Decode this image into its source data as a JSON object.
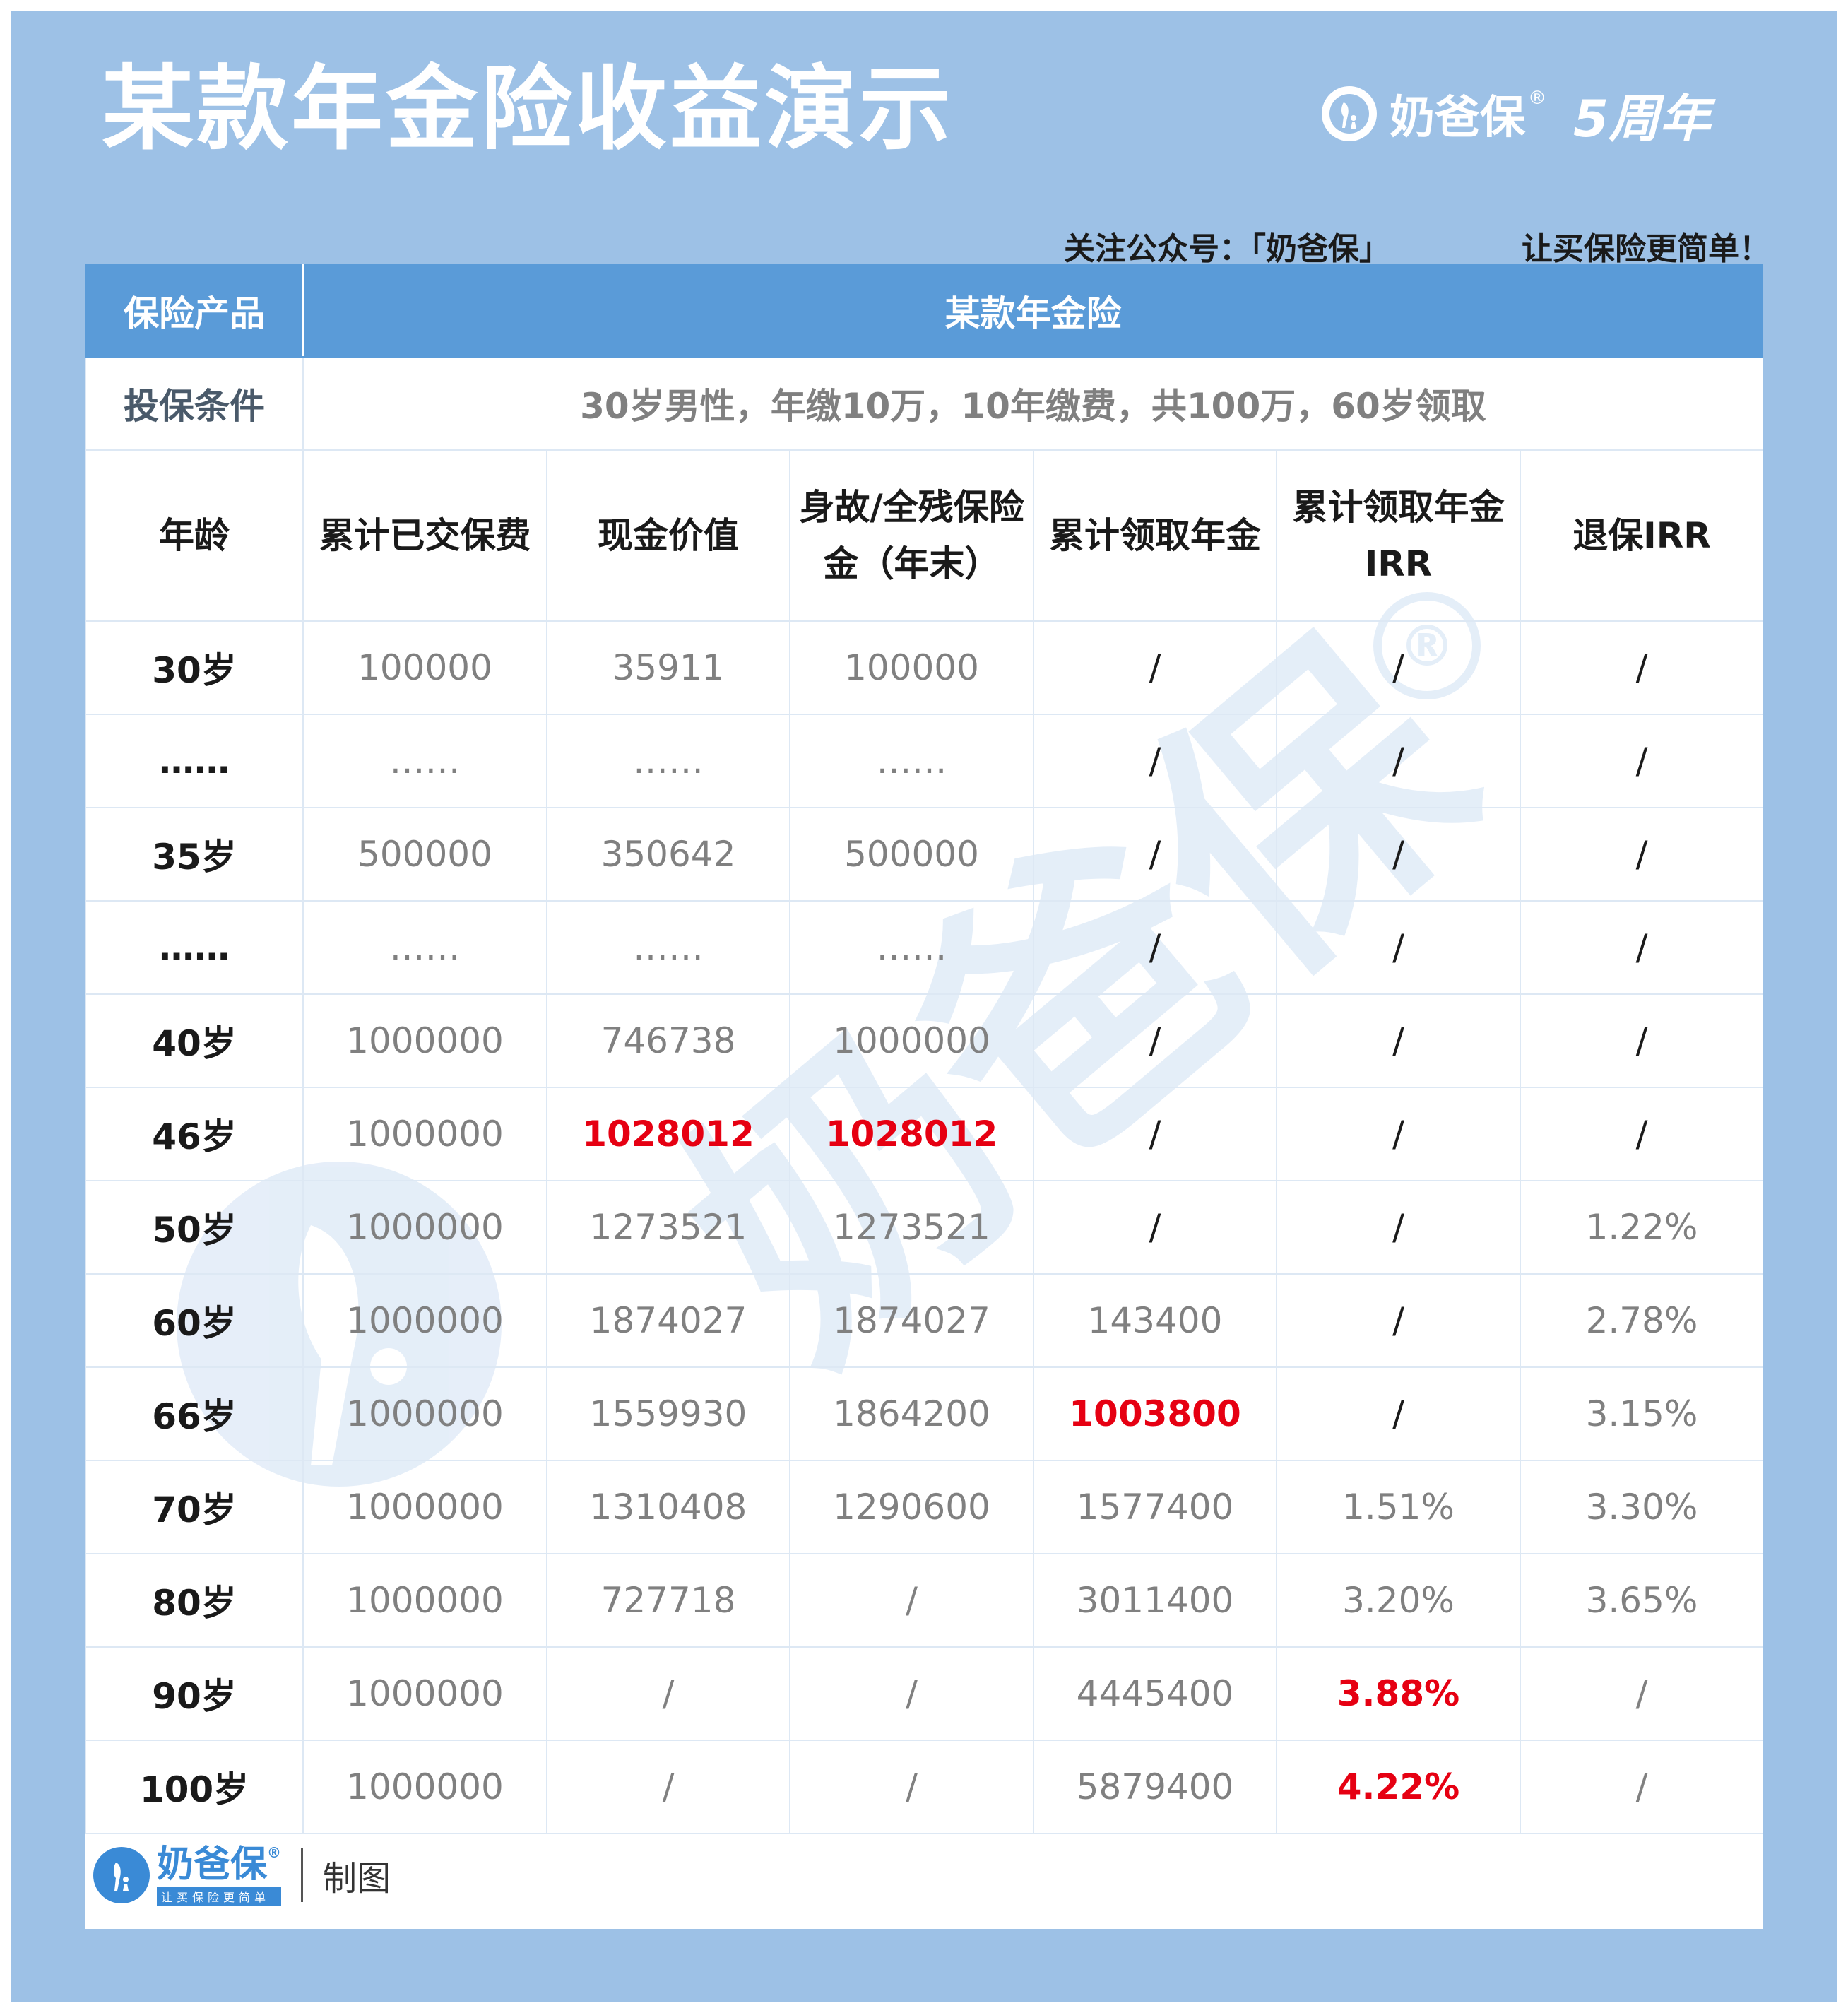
{
  "header": {
    "title": "某款年金险收益演示",
    "brand_name": "奶爸保",
    "brand_reg": "®",
    "anniversary": "5周年",
    "slogan_left": "关注公众号：「奶爸保」",
    "slogan_right": "让买保险更简单！"
  },
  "table": {
    "product_label": "保险产品",
    "product_value": "某款年金险",
    "condition_label": "投保条件",
    "condition_value": "30岁男性，年缴10万，10年缴费，共100万，60岁领取",
    "columns": [
      "年龄",
      "累计已交保费",
      "现金价值",
      "身故/全残保险金（年末）",
      "累计领取年金",
      "累计领取年金IRR",
      "退保IRR"
    ],
    "rows": [
      [
        "30岁",
        "100000",
        "35911",
        "100000",
        "/",
        "/",
        "/"
      ],
      [
        "……",
        "……",
        "……",
        "……",
        "/",
        "/",
        "/"
      ],
      [
        "35岁",
        "500000",
        "350642",
        "500000",
        "/",
        "/",
        "/"
      ],
      [
        "……",
        "……",
        "……",
        "……",
        "/",
        "/",
        "/"
      ],
      [
        "40岁",
        "1000000",
        "746738",
        "1000000",
        "/",
        "/",
        "/"
      ],
      [
        "46岁",
        "1000000",
        "1028012",
        "1028012",
        "/",
        "/",
        "/"
      ],
      [
        "50岁",
        "1000000",
        "1273521",
        "1273521",
        "/",
        "/",
        "1.22%"
      ],
      [
        "60岁",
        "1000000",
        "1874027",
        "1874027",
        "143400",
        "/",
        "2.78%"
      ],
      [
        "66岁",
        "1000000",
        "1559930",
        "1864200",
        "1003800",
        "/",
        "3.15%"
      ],
      [
        "70岁",
        "1000000",
        "1310408",
        "1290600",
        "1577400",
        "1.51%",
        "3.30%"
      ],
      [
        "80岁",
        "1000000",
        "727718",
        "/",
        "3011400",
        "3.20%",
        "3.65%"
      ],
      [
        "90岁",
        "1000000",
        "/",
        "/",
        "4445400",
        "3.88%",
        "/"
      ],
      [
        "100岁",
        "1000000",
        "/",
        "/",
        "5879400",
        "4.22%",
        "/"
      ]
    ],
    "highlight_color": "#e60012"
  },
  "footer": {
    "brand_name": "奶爸保",
    "brand_reg": "®",
    "brand_sub": "让买保险更简单",
    "made_by": "制图"
  },
  "watermark": {
    "text": "奶爸保",
    "reg": "®"
  },
  "colors": {
    "frame_bg": "#9dc1e6",
    "header_row_bg": "#5a9bd8",
    "accent_red": "#e60012"
  }
}
